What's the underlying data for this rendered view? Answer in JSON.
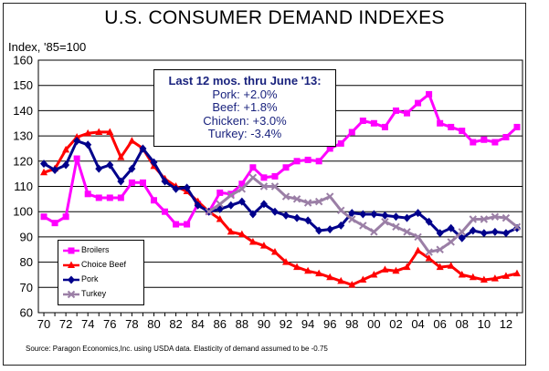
{
  "chart_data": {
    "type": "line",
    "title": "U.S. CONSUMER DEMAND INDEXES",
    "ylabel": "Index, '85=100",
    "source": "Source: Paragon Economics,Inc. using USDA data.  Elasticity of demand assumed to be -0.75",
    "ylim": [
      60,
      160
    ],
    "yticks": [
      "60",
      "70",
      "80",
      "90",
      "100",
      "110",
      "120",
      "130",
      "140",
      "150",
      "160"
    ],
    "xticks": [
      "70",
      "72",
      "74",
      "76",
      "78",
      "80",
      "82",
      "84",
      "86",
      "88",
      "90",
      "92",
      "94",
      "96",
      "98",
      "00",
      "02",
      "04",
      "06",
      "08",
      "10",
      "12"
    ],
    "grid": true,
    "legend_placement": "bottom-left",
    "annotation": {
      "title": "Last 12 mos. thru June '13:",
      "lines": [
        "Pork: +2.0%",
        "Beef: +1.8%",
        "Chicken: +3.0%",
        "Turkey:  -3.4%"
      ]
    },
    "series": [
      {
        "name": "Broilers",
        "color": "#ff00ff",
        "marker": "square",
        "x": [
          1970,
          1971,
          1972,
          1973,
          1974,
          1975,
          1976,
          1977,
          1978,
          1979,
          1980,
          1981,
          1982,
          1983,
          1984,
          1985,
          1986,
          1987,
          1988,
          1989,
          1990,
          1991,
          1992,
          1993,
          1994,
          1995,
          1996,
          1997,
          1998,
          1999,
          2000,
          2001,
          2002,
          2003,
          2004,
          2005,
          2006,
          2007,
          2008,
          2009,
          2010,
          2011,
          2012,
          2013
        ],
        "values": [
          98,
          95.5,
          98,
          121,
          107,
          105.5,
          105.5,
          105.5,
          111.5,
          111.5,
          104.5,
          100,
          95,
          95,
          103,
          100,
          107.5,
          107,
          111,
          117.5,
          113.5,
          114,
          117.5,
          120,
          120.5,
          120,
          125,
          127,
          131.5,
          136,
          135,
          133.5,
          140,
          139,
          143,
          146.5,
          135,
          133.5,
          132,
          127.5,
          128.5,
          127.5,
          129.5,
          133.5
        ]
      },
      {
        "name": "Choice Beef",
        "color": "#ff0000",
        "marker": "triangle",
        "x": [
          1970,
          1971,
          1972,
          1973,
          1974,
          1975,
          1976,
          1977,
          1978,
          1979,
          1980,
          1981,
          1982,
          1983,
          1984,
          1985,
          1986,
          1987,
          1988,
          1989,
          1990,
          1991,
          1992,
          1993,
          1994,
          1995,
          1996,
          1997,
          1998,
          1999,
          2000,
          2001,
          2002,
          2003,
          2004,
          2005,
          2006,
          2007,
          2008,
          2009,
          2010,
          2011,
          2012,
          2013
        ],
        "values": [
          115.5,
          117,
          124.5,
          129.5,
          131,
          131.5,
          131.5,
          121.5,
          128,
          125,
          118,
          113,
          110,
          108,
          104,
          100,
          97,
          92,
          91,
          88,
          86.5,
          84,
          80,
          78,
          76.5,
          75.5,
          74,
          72.5,
          71,
          73,
          75,
          77,
          76.5,
          78,
          84.5,
          81.5,
          78,
          78.5,
          75,
          74,
          73,
          73.5,
          74.5,
          75.5
        ]
      },
      {
        "name": "Pork",
        "color": "#00008b",
        "marker": "diamond",
        "x": [
          1970,
          1971,
          1972,
          1973,
          1974,
          1975,
          1976,
          1977,
          1978,
          1979,
          1980,
          1981,
          1982,
          1983,
          1984,
          1985,
          1986,
          1987,
          1988,
          1989,
          1990,
          1991,
          1992,
          1993,
          1994,
          1995,
          1996,
          1997,
          1998,
          1999,
          2000,
          2001,
          2002,
          2003,
          2004,
          2005,
          2006,
          2007,
          2008,
          2009,
          2010,
          2011,
          2012,
          2013
        ],
        "values": [
          119,
          116.5,
          118.5,
          128,
          126.5,
          117,
          118.5,
          112,
          117,
          125,
          119.5,
          112,
          109,
          109.5,
          102.5,
          100,
          101,
          102.5,
          104,
          99,
          103,
          100,
          98.5,
          97.5,
          96.5,
          92.5,
          93,
          94.5,
          99.5,
          99,
          99,
          98.5,
          98,
          97.5,
          99.5,
          96,
          91.5,
          93.5,
          89.5,
          92.5,
          91.5,
          92,
          91.5,
          93.5
        ]
      },
      {
        "name": "Turkey",
        "color": "#9b7fa6",
        "marker": "cross",
        "x": [
          1985,
          1986,
          1987,
          1988,
          1989,
          1990,
          1991,
          1992,
          1993,
          1994,
          1995,
          1996,
          1997,
          1998,
          1999,
          2000,
          2001,
          2002,
          2003,
          2004,
          2005,
          2006,
          2007,
          2008,
          2009,
          2010,
          2011,
          2012,
          2013
        ],
        "values": [
          100,
          103,
          106.5,
          109,
          113.5,
          110,
          110,
          106,
          105,
          103.5,
          104,
          106,
          100.5,
          97,
          94.5,
          92,
          96,
          94,
          92,
          90,
          84,
          85,
          88,
          92,
          97,
          97,
          98,
          97.5,
          94
        ]
      }
    ]
  }
}
